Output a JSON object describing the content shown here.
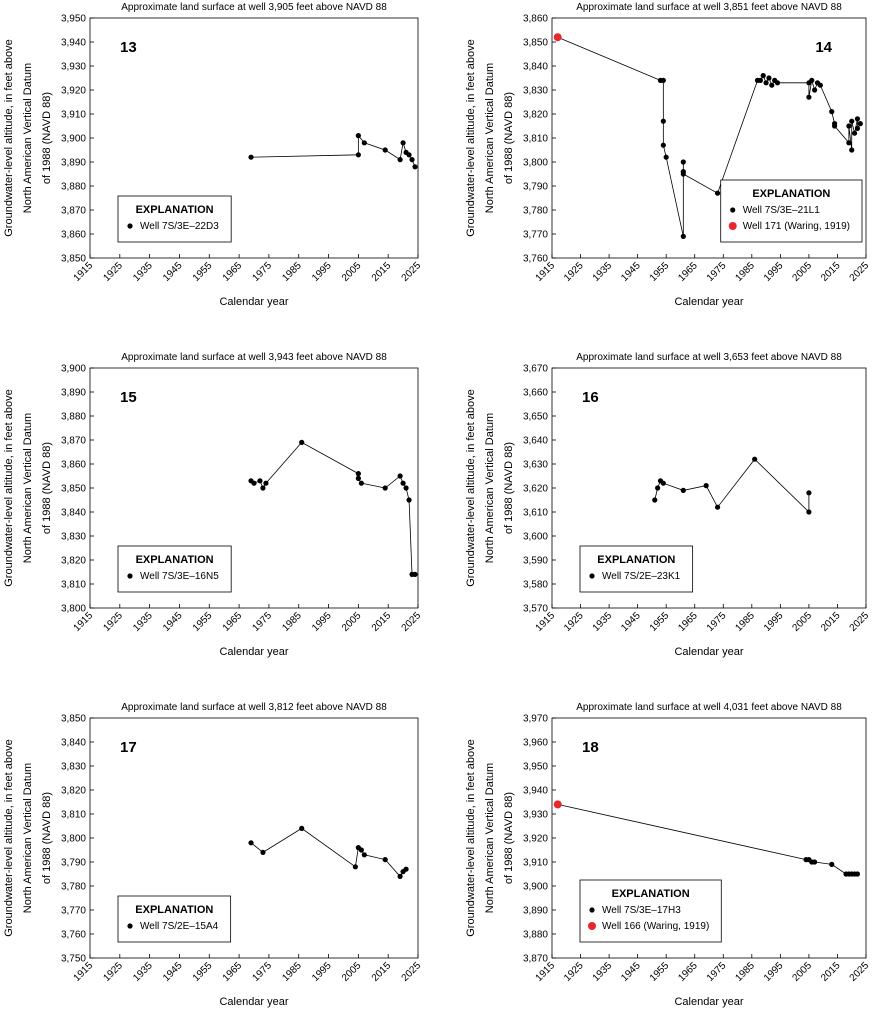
{
  "chart_data": [
    {
      "type": "scatter-line",
      "title": "Approximate land surface at well 3,905 feet above NAVD 88",
      "annotation": "13",
      "label_corner": "upper left",
      "x_label": "Calendar year",
      "y_label": [
        "Groundwater-level altitude, in feet above",
        "North American Vertical Datum",
        "of 1988 (NAVD 88)"
      ],
      "legend_title": "EXPLANATION",
      "legend": "lower left",
      "xlim": [
        1915,
        2025
      ],
      "xticks": [
        1915,
        1925,
        1935,
        1945,
        1955,
        1965,
        1975,
        1985,
        1995,
        2005,
        2015,
        2025
      ],
      "ylim": [
        3850,
        3950
      ],
      "yticks": [
        {
          "value": 3850,
          "label": "3,850"
        },
        {
          "value": 3860,
          "label": "3,860"
        },
        {
          "value": 3870,
          "label": "3,870"
        },
        {
          "value": 3880,
          "label": "3,880"
        },
        {
          "value": 3890,
          "label": "3,890"
        },
        {
          "value": 3900,
          "label": "3,900"
        },
        {
          "value": 3910,
          "label": "3,910"
        },
        {
          "value": 3920,
          "label": "3,920"
        },
        {
          "value": 3930,
          "label": "3,930"
        },
        {
          "value": 3940,
          "label": "3,940"
        },
        {
          "value": 3950,
          "label": "3,950"
        }
      ],
      "series": [
        {
          "name": "Well 7S/3E–22D3",
          "color": "#000000",
          "x": [
            1969,
            2005,
            2005,
            2007,
            2014,
            2019,
            2020,
            2021,
            2022,
            2023,
            2024
          ],
          "values": [
            3892,
            3893,
            3901,
            3898,
            3895,
            3891,
            3898,
            3894,
            3893,
            3891,
            3888
          ]
        }
      ]
    },
    {
      "type": "scatter-line",
      "title": "Approximate land surface at well 3,851 feet above NAVD 88",
      "annotation": "14",
      "label_corner": "upper right",
      "x_label": "Calendar year",
      "y_label": [
        "Groundwater-level altitude, in feet above",
        "North American Vertical Datum",
        "of 1988 (NAVD 88)"
      ],
      "legend_title": "EXPLANATION",
      "legend": "lower right",
      "xlim": [
        1915,
        2025
      ],
      "xticks": [
        1915,
        1925,
        1935,
        1945,
        1955,
        1965,
        1975,
        1985,
        1995,
        2005,
        2015,
        2025
      ],
      "ylim": [
        3760,
        3860
      ],
      "yticks": [
        {
          "value": 3760,
          "label": "3,760"
        },
        {
          "value": 3770,
          "label": "3,770"
        },
        {
          "value": 3780,
          "label": "3,780"
        },
        {
          "value": 3790,
          "label": "3,790"
        },
        {
          "value": 3800,
          "label": "3,800"
        },
        {
          "value": 3810,
          "label": "3,810"
        },
        {
          "value": 3820,
          "label": "3,820"
        },
        {
          "value": 3830,
          "label": "3,830"
        },
        {
          "value": 3840,
          "label": "3,840"
        },
        {
          "value": 3850,
          "label": "3,850"
        },
        {
          "value": 3860,
          "label": "3,860"
        }
      ],
      "series": [
        {
          "name": "Well 7S/3E–21L1",
          "color": "#000000",
          "x": [
            1953,
            1954,
            1954,
            1954,
            1955,
            1961,
            1961,
            1961,
            1961,
            1973,
            1987,
            1988,
            1989,
            1990,
            1991,
            1992,
            1993,
            1994,
            2005,
            2005,
            2006,
            2007,
            2008,
            2009,
            2013,
            2014,
            2014,
            2019,
            2019,
            2020,
            2020,
            2021,
            2022,
            2022,
            2023
          ],
          "values": [
            3834,
            3834,
            3817,
            3807,
            3802,
            3769,
            3796,
            3800,
            3795,
            3787,
            3834,
            3834,
            3836,
            3833,
            3835,
            3832,
            3834,
            3833,
            3833,
            3827,
            3834,
            3830,
            3833,
            3832,
            3821,
            3816,
            3815,
            3808,
            3815,
            3805,
            3817,
            3812,
            3818,
            3814,
            3816
          ]
        },
        {
          "name": "Well 171 (Waring, 1919)",
          "color": "#e8262b",
          "x": [
            1917
          ],
          "values": [
            3852
          ]
        }
      ]
    },
    {
      "type": "scatter-line",
      "title": "Approximate land surface at well 3,943 feet above NAVD 88",
      "annotation": "15",
      "label_corner": "upper left",
      "x_label": "Calendar year",
      "y_label": [
        "Groundwater-level altitude, in feet above",
        "North American Vertical Datum",
        "of 1988 (NAVD 88)"
      ],
      "legend_title": "EXPLANATION",
      "legend": "lower left",
      "xlim": [
        1915,
        2025
      ],
      "xticks": [
        1915,
        1925,
        1935,
        1945,
        1955,
        1965,
        1975,
        1985,
        1995,
        2005,
        2015,
        2025
      ],
      "ylim": [
        3800,
        3900
      ],
      "yticks": [
        {
          "value": 3800,
          "label": "3,800"
        },
        {
          "value": 3810,
          "label": "3,810"
        },
        {
          "value": 3820,
          "label": "3,820"
        },
        {
          "value": 3830,
          "label": "3,830"
        },
        {
          "value": 3840,
          "label": "3,840"
        },
        {
          "value": 3850,
          "label": "3,850"
        },
        {
          "value": 3860,
          "label": "3,860"
        },
        {
          "value": 3870,
          "label": "3,870"
        },
        {
          "value": 3880,
          "label": "3,880"
        },
        {
          "value": 3890,
          "label": "3,890"
        },
        {
          "value": 3900,
          "label": "3,900"
        }
      ],
      "series": [
        {
          "name": "Well 7S/3E–16N5",
          "color": "#000000",
          "x": [
            1969,
            1970,
            1972,
            1973,
            1974,
            1986,
            2005,
            2005,
            2006,
            2014,
            2019,
            2020,
            2021,
            2022,
            2023,
            2024
          ],
          "values": [
            3853,
            3852,
            3853,
            3850,
            3852,
            3869,
            3856,
            3854,
            3852,
            3850,
            3855,
            3852,
            3850,
            3845,
            3814,
            3814
          ]
        }
      ]
    },
    {
      "type": "scatter-line",
      "title": "Approximate land surface at well 3,653 feet above NAVD 88",
      "annotation": "16",
      "label_corner": "upper left",
      "x_label": "Calendar year",
      "y_label": [
        "Groundwater-level altitude, in feet above",
        "North American Vertical Datum",
        "of 1988 (NAVD 88)"
      ],
      "legend_title": "EXPLANATION",
      "legend": "lower left",
      "xlim": [
        1915,
        2025
      ],
      "xticks": [
        1915,
        1925,
        1935,
        1945,
        1955,
        1965,
        1975,
        1985,
        1995,
        2005,
        2015,
        2025
      ],
      "ylim": [
        3570,
        3670
      ],
      "yticks": [
        {
          "value": 3570,
          "label": "3,570"
        },
        {
          "value": 3580,
          "label": "3,580"
        },
        {
          "value": 3590,
          "label": "3,590"
        },
        {
          "value": 3600,
          "label": "3,600"
        },
        {
          "value": 3610,
          "label": "3,610"
        },
        {
          "value": 3620,
          "label": "3,620"
        },
        {
          "value": 3630,
          "label": "3,630"
        },
        {
          "value": 3640,
          "label": "3,640"
        },
        {
          "value": 3650,
          "label": "3,650"
        },
        {
          "value": 3660,
          "label": "3,660"
        },
        {
          "value": 3670,
          "label": "3,670"
        }
      ],
      "series": [
        {
          "name": "Well 7S/2E–23K1",
          "color": "#000000",
          "x": [
            1951,
            1952,
            1953,
            1954,
            1961,
            1969,
            1973,
            1986,
            2005,
            2005
          ],
          "values": [
            3615,
            3620,
            3623,
            3622,
            3619,
            3621,
            3612,
            3632,
            3610,
            3618
          ]
        }
      ]
    },
    {
      "type": "scatter-line",
      "title": "Approximate land surface at well 3,812 feet above NAVD 88",
      "annotation": "17",
      "label_corner": "upper left",
      "x_label": "Calendar year",
      "y_label": [
        "Groundwater-level altitude, in feet above",
        "North American Vertical Datum",
        "of 1988 (NAVD 88)"
      ],
      "legend_title": "EXPLANATION",
      "legend": "lower left",
      "xlim": [
        1915,
        2025
      ],
      "xticks": [
        1915,
        1925,
        1935,
        1945,
        1955,
        1965,
        1975,
        1985,
        1995,
        2005,
        2015,
        2025
      ],
      "ylim": [
        3750,
        3850
      ],
      "yticks": [
        {
          "value": 3750,
          "label": "3,750"
        },
        {
          "value": 3760,
          "label": "3,760"
        },
        {
          "value": 3770,
          "label": "3,770"
        },
        {
          "value": 3780,
          "label": "3,780"
        },
        {
          "value": 3790,
          "label": "3,790"
        },
        {
          "value": 3800,
          "label": "3,800"
        },
        {
          "value": 3810,
          "label": "3,810"
        },
        {
          "value": 3820,
          "label": "3,820"
        },
        {
          "value": 3830,
          "label": "3,830"
        },
        {
          "value": 3840,
          "label": "3,840"
        },
        {
          "value": 3850,
          "label": "3,850"
        }
      ],
      "series": [
        {
          "name": "Well 7S/2E–15A4",
          "color": "#000000",
          "x": [
            1969,
            1973,
            1986,
            2004,
            2005,
            2006,
            2007,
            2014,
            2019,
            2020,
            2021
          ],
          "values": [
            3798,
            3794,
            3804,
            3788,
            3796,
            3795,
            3793,
            3791,
            3784,
            3786,
            3787
          ]
        }
      ]
    },
    {
      "type": "scatter-line",
      "title": "Approximate land surface at well 4,031 feet above NAVD 88",
      "annotation": "18",
      "label_corner": "upper left",
      "x_label": "Calendar year",
      "y_label": [
        "Groundwater-level altitude, in feet above",
        "North American Vertical Datum",
        "of 1988 (NAVD 88)"
      ],
      "legend_title": "EXPLANATION",
      "legend": "lower left",
      "xlim": [
        1915,
        2025
      ],
      "xticks": [
        1915,
        1925,
        1935,
        1945,
        1955,
        1965,
        1975,
        1985,
        1995,
        2005,
        2015,
        2025
      ],
      "ylim": [
        3870,
        3970
      ],
      "yticks": [
        {
          "value": 3870,
          "label": "3,870"
        },
        {
          "value": 3880,
          "label": "3,880"
        },
        {
          "value": 3890,
          "label": "3,890"
        },
        {
          "value": 3900,
          "label": "3,900"
        },
        {
          "value": 3910,
          "label": "3,910"
        },
        {
          "value": 3920,
          "label": "3,920"
        },
        {
          "value": 3930,
          "label": "3,930"
        },
        {
          "value": 3940,
          "label": "3,940"
        },
        {
          "value": 3950,
          "label": "3,950"
        },
        {
          "value": 3960,
          "label": "3,960"
        },
        {
          "value": 3970,
          "label": "3,970"
        }
      ],
      "series": [
        {
          "name": "Well 7S/3E–17H3",
          "color": "#000000",
          "x": [
            2004,
            2005,
            2006,
            2007,
            2013,
            2018,
            2019,
            2020,
            2021,
            2022
          ],
          "values": [
            3911,
            3911,
            3910,
            3910,
            3909,
            3905,
            3905,
            3905,
            3905,
            3905
          ]
        },
        {
          "name": "Well 166 (Waring, 1919)",
          "color": "#e8262b",
          "x": [
            1917
          ],
          "values": [
            3934
          ]
        }
      ]
    }
  ]
}
